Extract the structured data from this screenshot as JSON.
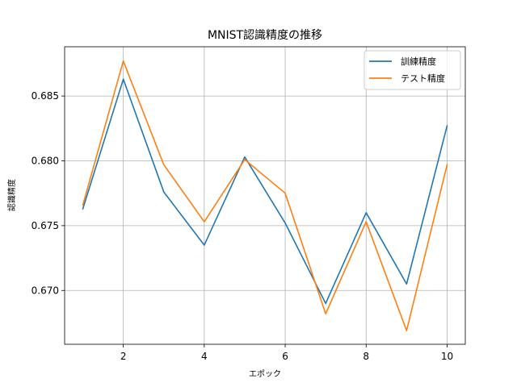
{
  "chart_data": {
    "type": "line",
    "title": "MNIST認識精度の推移",
    "xlabel": "エポック",
    "ylabel": "認識精度",
    "x": [
      1,
      2,
      3,
      4,
      5,
      6,
      7,
      8,
      9,
      10
    ],
    "xlim": [
      0.55,
      10.45
    ],
    "ylim": [
      0.66585,
      0.6888
    ],
    "xticks": [
      2,
      4,
      6,
      8,
      10
    ],
    "yticks": [
      0.67,
      0.675,
      0.68,
      0.685
    ],
    "ytick_labels": [
      "0.670",
      "0.675",
      "0.680",
      "0.685"
    ],
    "grid": true,
    "legend_position": "upper right",
    "series": [
      {
        "name": "訓練精度",
        "color": "#1f77b4",
        "values": [
          0.6763,
          0.6863,
          0.6776,
          0.6735,
          0.6803,
          0.6752,
          0.669,
          0.676,
          0.6705,
          0.6827
        ]
      },
      {
        "name": "テスト精度",
        "color": "#ff7f0e",
        "values": [
          0.6766,
          0.6877,
          0.6797,
          0.6753,
          0.6801,
          0.6775,
          0.6682,
          0.6753,
          0.6669,
          0.6797
        ]
      }
    ]
  }
}
